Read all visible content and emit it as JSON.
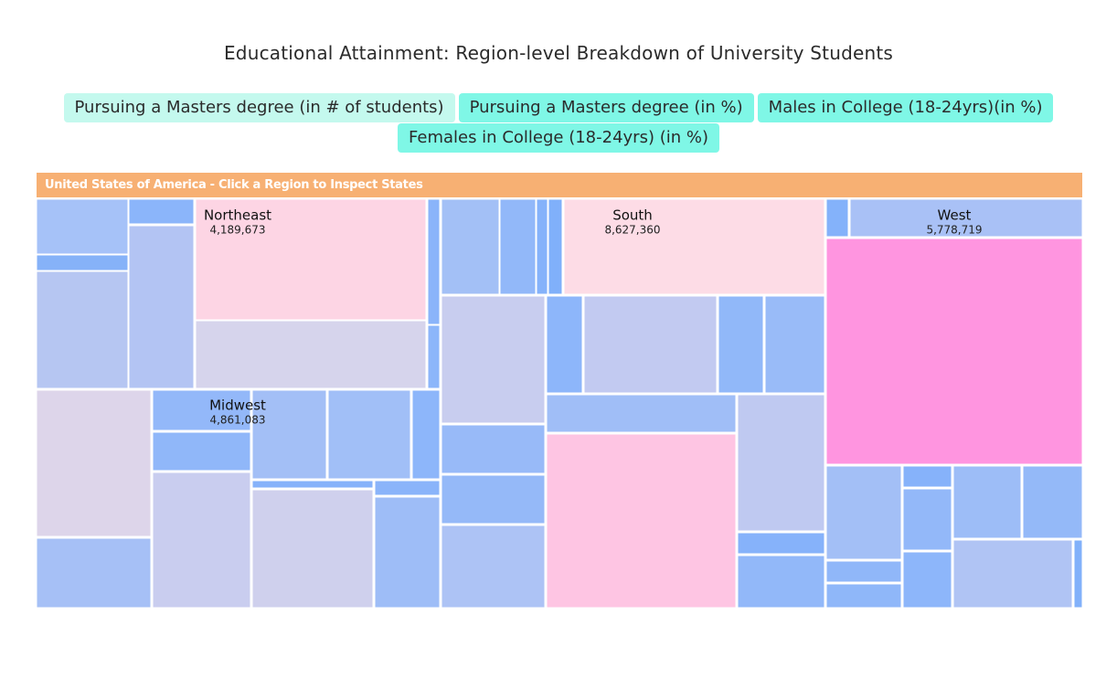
{
  "title": "Educational Attainment: Region-level Breakdown of University Students",
  "buttons": [
    {
      "label": "Pursuing a Masters degree (in # of students)",
      "active": true
    },
    {
      "label": "Pursuing a Masters degree (in %)",
      "active": false
    },
    {
      "label": "Males in College (18-24yrs)(in %)",
      "active": false
    },
    {
      "label": "Females in College (18-24yrs) (in %)",
      "active": false
    }
  ],
  "chart_data": {
    "type": "treemap",
    "title": "Educational Attainment: Region-level Breakdown of University Students",
    "root_label": "United States of America - Click a Region to Inspect States",
    "colors": {
      "header": "#f7b073",
      "low": "#7fb2fa",
      "high": "#ff95e0"
    },
    "regions": [
      {
        "name": "Northeast",
        "value": 4189673,
        "value_label": "4,189,673"
      },
      {
        "name": "South",
        "value": 8627360,
        "value_label": "8,627,360"
      },
      {
        "name": "West",
        "value": 5778719,
        "value_label": "5,778,719"
      },
      {
        "name": "Midwest",
        "value": 4861083,
        "value_label": "4,861,083"
      }
    ]
  }
}
